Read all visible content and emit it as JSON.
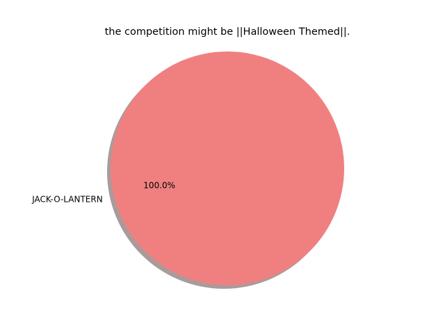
{
  "chart_data": {
    "type": "pie",
    "title": "the competition might be ||Halloween Themed||.",
    "slices": [
      {
        "label": "JACK-O-LANTERN",
        "value": 100.0,
        "percent_label": "100.0%",
        "color": "#f08080"
      }
    ],
    "shadow": true,
    "shadow_color": "#a09090",
    "legend": "none"
  }
}
